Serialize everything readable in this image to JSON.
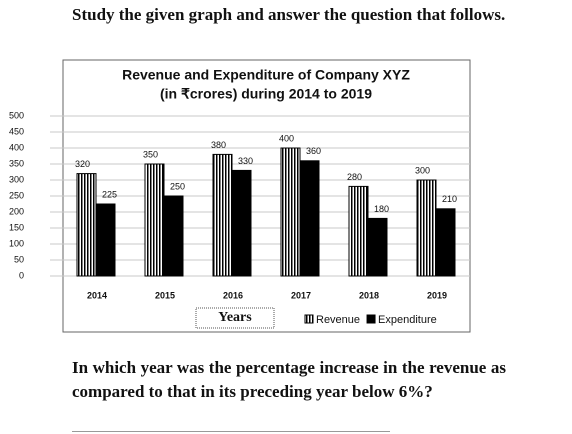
{
  "header": {
    "text": "Study the given graph and answer the question that follows."
  },
  "chart_data": {
    "type": "bar",
    "title": "Revenue and Expenditure of Company XYZ",
    "subtitle": "(in ₹crores) during 2014 to 2019",
    "x_label": "Years",
    "categories": [
      "2014",
      "2015",
      "2016",
      "2017",
      "2018",
      "2019"
    ],
    "series": [
      {
        "name": "Revenue",
        "color": "#000000",
        "hatch": "vertical",
        "values": [
          320,
          350,
          380,
          400,
          280,
          300
        ]
      },
      {
        "name": "Expenditure",
        "color": "#000000",
        "values": [
          225,
          250,
          330,
          360,
          180,
          210
        ]
      }
    ],
    "ylim": [
      0,
      500
    ],
    "yticks": [
      0,
      50,
      100,
      150,
      200,
      250,
      300,
      350,
      400,
      450,
      500
    ],
    "grid": true
  },
  "question": {
    "text": "In which year was the percentage increase in the revenue as compared to that in its preceding year below 6%?"
  }
}
